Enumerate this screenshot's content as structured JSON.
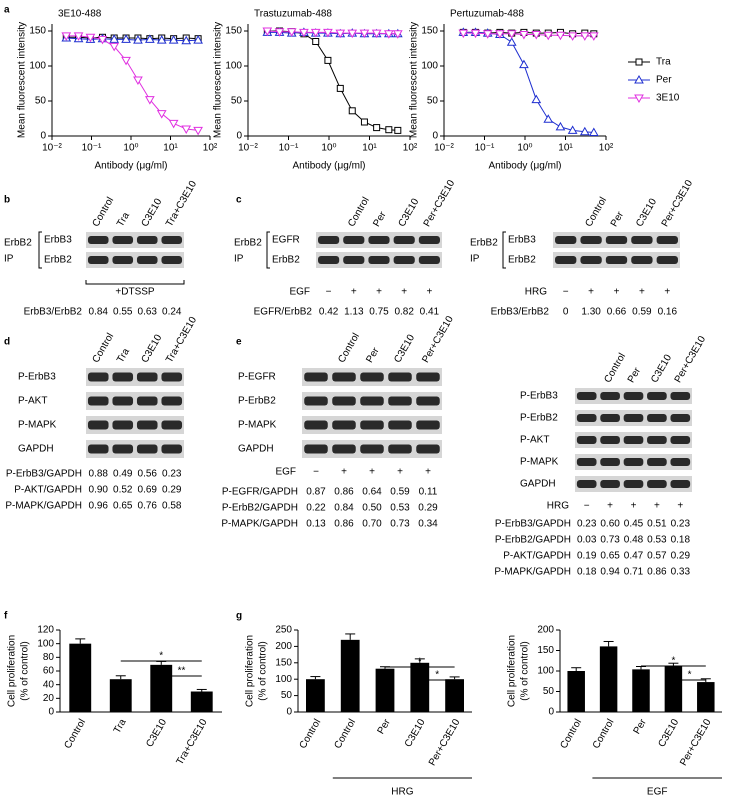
{
  "panel_labels": [
    "a",
    "b",
    "c",
    "d",
    "e",
    "f",
    "g"
  ],
  "chart_data": [
    {
      "type": "line",
      "title": "3E10-488",
      "x_label": "Antibody (μg/ml)",
      "y_label": "Mean fluorescent intensity",
      "xlog": true,
      "x": [
        0.023,
        0.047,
        0.094,
        0.19,
        0.375,
        0.75,
        1.5,
        3,
        6,
        12,
        25,
        50
      ],
      "xlim": [
        0.01,
        100
      ],
      "xticks": [
        {
          "value": 0.01,
          "label": "10⁻²"
        },
        {
          "value": 0.1,
          "label": "10⁻¹"
        },
        {
          "value": 1,
          "label": "10⁰"
        },
        {
          "value": 10,
          "label": "10¹"
        },
        {
          "value": 100,
          "label": "10²"
        }
      ],
      "ylim": [
        0,
        160
      ],
      "yticks": [
        0,
        50,
        100,
        150
      ],
      "series": [
        {
          "name": "Tra",
          "color": "#000000",
          "marker": "square",
          "values": [
            141,
            141,
            140,
            141,
            140,
            140,
            140,
            139,
            140,
            139,
            140,
            139
          ]
        },
        {
          "name": "Per",
          "color": "#1f2fd0",
          "marker": "triangle-up",
          "values": [
            140,
            139,
            138,
            139,
            138,
            138,
            137,
            138,
            137,
            137,
            136,
            137
          ]
        },
        {
          "name": "3E10",
          "color": "#e030e0",
          "marker": "triangle-down",
          "values": [
            143,
            143,
            141,
            138,
            128,
            108,
            80,
            52,
            32,
            18,
            10,
            8
          ]
        }
      ]
    },
    {
      "type": "line",
      "title": "Trastuzumab-488",
      "x_label": "Antibody (μg/ml)",
      "y_label": "Mean fluorescent intensity",
      "xlog": true,
      "x": [
        0.03,
        0.06,
        0.12,
        0.24,
        0.47,
        0.94,
        1.9,
        3.75,
        7.5,
        15,
        30,
        50
      ],
      "xlim": [
        0.01,
        100
      ],
      "xticks": [
        {
          "value": 0.01,
          "label": "10⁻²"
        },
        {
          "value": 0.1,
          "label": "10⁻¹"
        },
        {
          "value": 1,
          "label": "10⁰"
        },
        {
          "value": 10,
          "label": "10¹"
        },
        {
          "value": 100,
          "label": "10²"
        }
      ],
      "ylim": [
        0,
        160
      ],
      "yticks": [
        0,
        50,
        100,
        150
      ],
      "series": [
        {
          "name": "Tra",
          "color": "#000000",
          "marker": "square",
          "values": [
            150,
            150,
            149,
            146,
            135,
            108,
            68,
            36,
            20,
            12,
            9,
            8
          ]
        },
        {
          "name": "Per",
          "color": "#1f2fd0",
          "marker": "triangle-up",
          "values": [
            148,
            148,
            147,
            148,
            147,
            147,
            146,
            147,
            146,
            146,
            146,
            146
          ]
        },
        {
          "name": "3E10",
          "color": "#e030e0",
          "marker": "triangle-down",
          "values": [
            150,
            149,
            149,
            148,
            148,
            148,
            147,
            147,
            147,
            147,
            146,
            146
          ]
        }
      ]
    },
    {
      "type": "line",
      "title": "Pertuzumab-488",
      "x_label": "Antibody (μg/ml)",
      "y_label": "Mean fluorescent intensity",
      "xlog": true,
      "legend": "right",
      "x": [
        0.03,
        0.06,
        0.12,
        0.24,
        0.47,
        0.94,
        1.9,
        3.75,
        7.5,
        15,
        30,
        50
      ],
      "xlim": [
        0.01,
        100
      ],
      "xticks": [
        {
          "value": 0.01,
          "label": "10⁻²"
        },
        {
          "value": 0.1,
          "label": "10⁻¹"
        },
        {
          "value": 1,
          "label": "10⁰"
        },
        {
          "value": 10,
          "label": "10¹"
        },
        {
          "value": 100,
          "label": "10²"
        }
      ],
      "ylim": [
        0,
        160
      ],
      "yticks": [
        0,
        50,
        100,
        150
      ],
      "series": [
        {
          "name": "Tra",
          "color": "#000000",
          "marker": "square",
          "values": [
            148,
            148,
            147,
            148,
            147,
            148,
            147,
            147,
            148,
            146,
            147,
            146
          ]
        },
        {
          "name": "Per",
          "color": "#1f2fd0",
          "marker": "triangle-up",
          "values": [
            148,
            148,
            147,
            145,
            134,
            102,
            52,
            24,
            13,
            8,
            6,
            5
          ]
        },
        {
          "name": "3E10",
          "color": "#e030e0",
          "marker": "triangle-down",
          "values": [
            147,
            147,
            146,
            146,
            146,
            145,
            145,
            144,
            144,
            143,
            143,
            143
          ]
        }
      ]
    },
    {
      "type": "bar",
      "y_label": [
        "Cell proliferation",
        "(% of control)"
      ],
      "color": "#000000",
      "categories": [
        "Control",
        "Tra",
        "C3E10",
        "Tra+C3E10"
      ],
      "values": [
        100,
        48,
        69,
        30
      ],
      "errors": [
        7,
        5,
        5,
        3
      ],
      "ylim": [
        0,
        120
      ],
      "yticks": [
        0,
        20,
        40,
        60,
        80,
        100,
        120
      ],
      "annotations": [
        "*",
        "**"
      ]
    },
    {
      "type": "bar",
      "y_label": [
        "Cell proliferation",
        "(% of control)"
      ],
      "color": "#000000",
      "group_label": "HRG",
      "categories": [
        "Control",
        "Control",
        "Per",
        "C3E10",
        "Per+C3E10"
      ],
      "values": [
        100,
        220,
        132,
        150,
        100
      ],
      "errors": [
        8,
        18,
        6,
        12,
        7
      ],
      "ylim": [
        0,
        250
      ],
      "yticks": [
        0,
        50,
        100,
        150,
        200,
        250
      ],
      "annotations": [
        "*",
        "*"
      ]
    },
    {
      "type": "bar",
      "y_label": [
        "Cell proliferation",
        "(% of control)"
      ],
      "color": "#000000",
      "group_label": "EGF",
      "categories": [
        "Control",
        "Control",
        "Per",
        "C3E10",
        "Per+C3E10"
      ],
      "values": [
        100,
        160,
        104,
        113,
        73
      ],
      "errors": [
        8,
        12,
        7,
        6,
        8
      ],
      "ylim": [
        0,
        200
      ],
      "yticks": [
        0,
        50,
        100,
        150,
        200
      ],
      "annotations": [
        "*",
        "*"
      ]
    }
  ],
  "blots": [
    {
      "ip": [
        "ErbB2",
        "IP"
      ],
      "lanes": [
        "Control",
        "Tra",
        "C3E10",
        "Tra+C3E10"
      ],
      "rows": [
        "ErbB3",
        "ErbB2"
      ],
      "treatment": "+DTSSP",
      "quant": [
        {
          "label": "ErbB3/ErbB2",
          "values": [
            "0.84",
            "0.55",
            "0.63",
            "0.24"
          ]
        }
      ]
    },
    {
      "ip": [
        "ErbB2",
        "IP"
      ],
      "lanes": [
        "Control",
        "Per",
        "C3E10",
        "Per+C3E10"
      ],
      "rows": [
        "EGFR",
        "ErbB2"
      ],
      "stimulus": "EGF",
      "signs": [
        "−",
        "+",
        "+",
        "+",
        "+"
      ],
      "quant": [
        {
          "label": "EGFR/ErbB2",
          "values": [
            "0.42",
            "1.13",
            "0.75",
            "0.82",
            "0.41"
          ]
        }
      ]
    },
    {
      "ip": [
        "ErbB2",
        "IP"
      ],
      "lanes": [
        "Control",
        "Per",
        "C3E10",
        "Per+C3E10"
      ],
      "rows": [
        "ErbB3",
        "ErbB2"
      ],
      "stimulus": "HRG",
      "signs": [
        "−",
        "+",
        "+",
        "+",
        "+"
      ],
      "quant": [
        {
          "label": "ErbB3/ErbB2",
          "values": [
            "0",
            "1.30",
            "0.66",
            "0.59",
            "0.16"
          ]
        }
      ]
    },
    {
      "lanes": [
        "Control",
        "Tra",
        "C3E10",
        "Tra+C3E10"
      ],
      "rows": [
        "P-ErbB3",
        "P-AKT",
        "P-MAPK",
        "GAPDH"
      ],
      "quant": [
        {
          "label": "P-ErbB3/GAPDH",
          "values": [
            "0.88",
            "0.49",
            "0.56",
            "0.23"
          ]
        },
        {
          "label": "P-AKT/GAPDH",
          "values": [
            "0.90",
            "0.52",
            "0.69",
            "0.29"
          ]
        },
        {
          "label": "P-MAPK/GAPDH",
          "values": [
            "0.96",
            "0.65",
            "0.76",
            "0.58"
          ]
        }
      ]
    },
    {
      "lanes": [
        "Control",
        "Per",
        "C3E10",
        "Per+C3E10"
      ],
      "rows": [
        "P-EGFR",
        "P-ErbB2",
        "P-MAPK",
        "GAPDH"
      ],
      "stimulus": "EGF",
      "signs": [
        "−",
        "+",
        "+",
        "+",
        "+"
      ],
      "quant": [
        {
          "label": "P-EGFR/GAPDH",
          "values": [
            "0.87",
            "0.86",
            "0.64",
            "0.59",
            "0.11"
          ]
        },
        {
          "label": "P-ErbB2/GAPDH",
          "values": [
            "0.22",
            "0.84",
            "0.50",
            "0.53",
            "0.29"
          ]
        },
        {
          "label": "P-MAPK/GAPDH",
          "values": [
            "0.13",
            "0.86",
            "0.70",
            "0.73",
            "0.34"
          ]
        }
      ]
    },
    {
      "lanes": [
        "Control",
        "Per",
        "C3E10",
        "Per+C3E10"
      ],
      "rows": [
        "P-ErbB3",
        "P-ErbB2",
        "P-AKT",
        "P-MAPK",
        "GAPDH"
      ],
      "stimulus": "HRG",
      "signs": [
        "−",
        "+",
        "+",
        "+",
        "+"
      ],
      "quant": [
        {
          "label": "P-ErbB3/GAPDH",
          "values": [
            "0.23",
            "0.60",
            "0.45",
            "0.51",
            "0.23"
          ]
        },
        {
          "label": "P-ErbB2/GAPDH",
          "values": [
            "0.03",
            "0.73",
            "0.48",
            "0.53",
            "0.18"
          ]
        },
        {
          "label": "P-AKT/GAPDH",
          "values": [
            "0.19",
            "0.65",
            "0.47",
            "0.57",
            "0.29"
          ]
        },
        {
          "label": "P-MAPK/GAPDH",
          "values": [
            "0.18",
            "0.94",
            "0.71",
            "0.86",
            "0.33"
          ]
        }
      ]
    }
  ]
}
